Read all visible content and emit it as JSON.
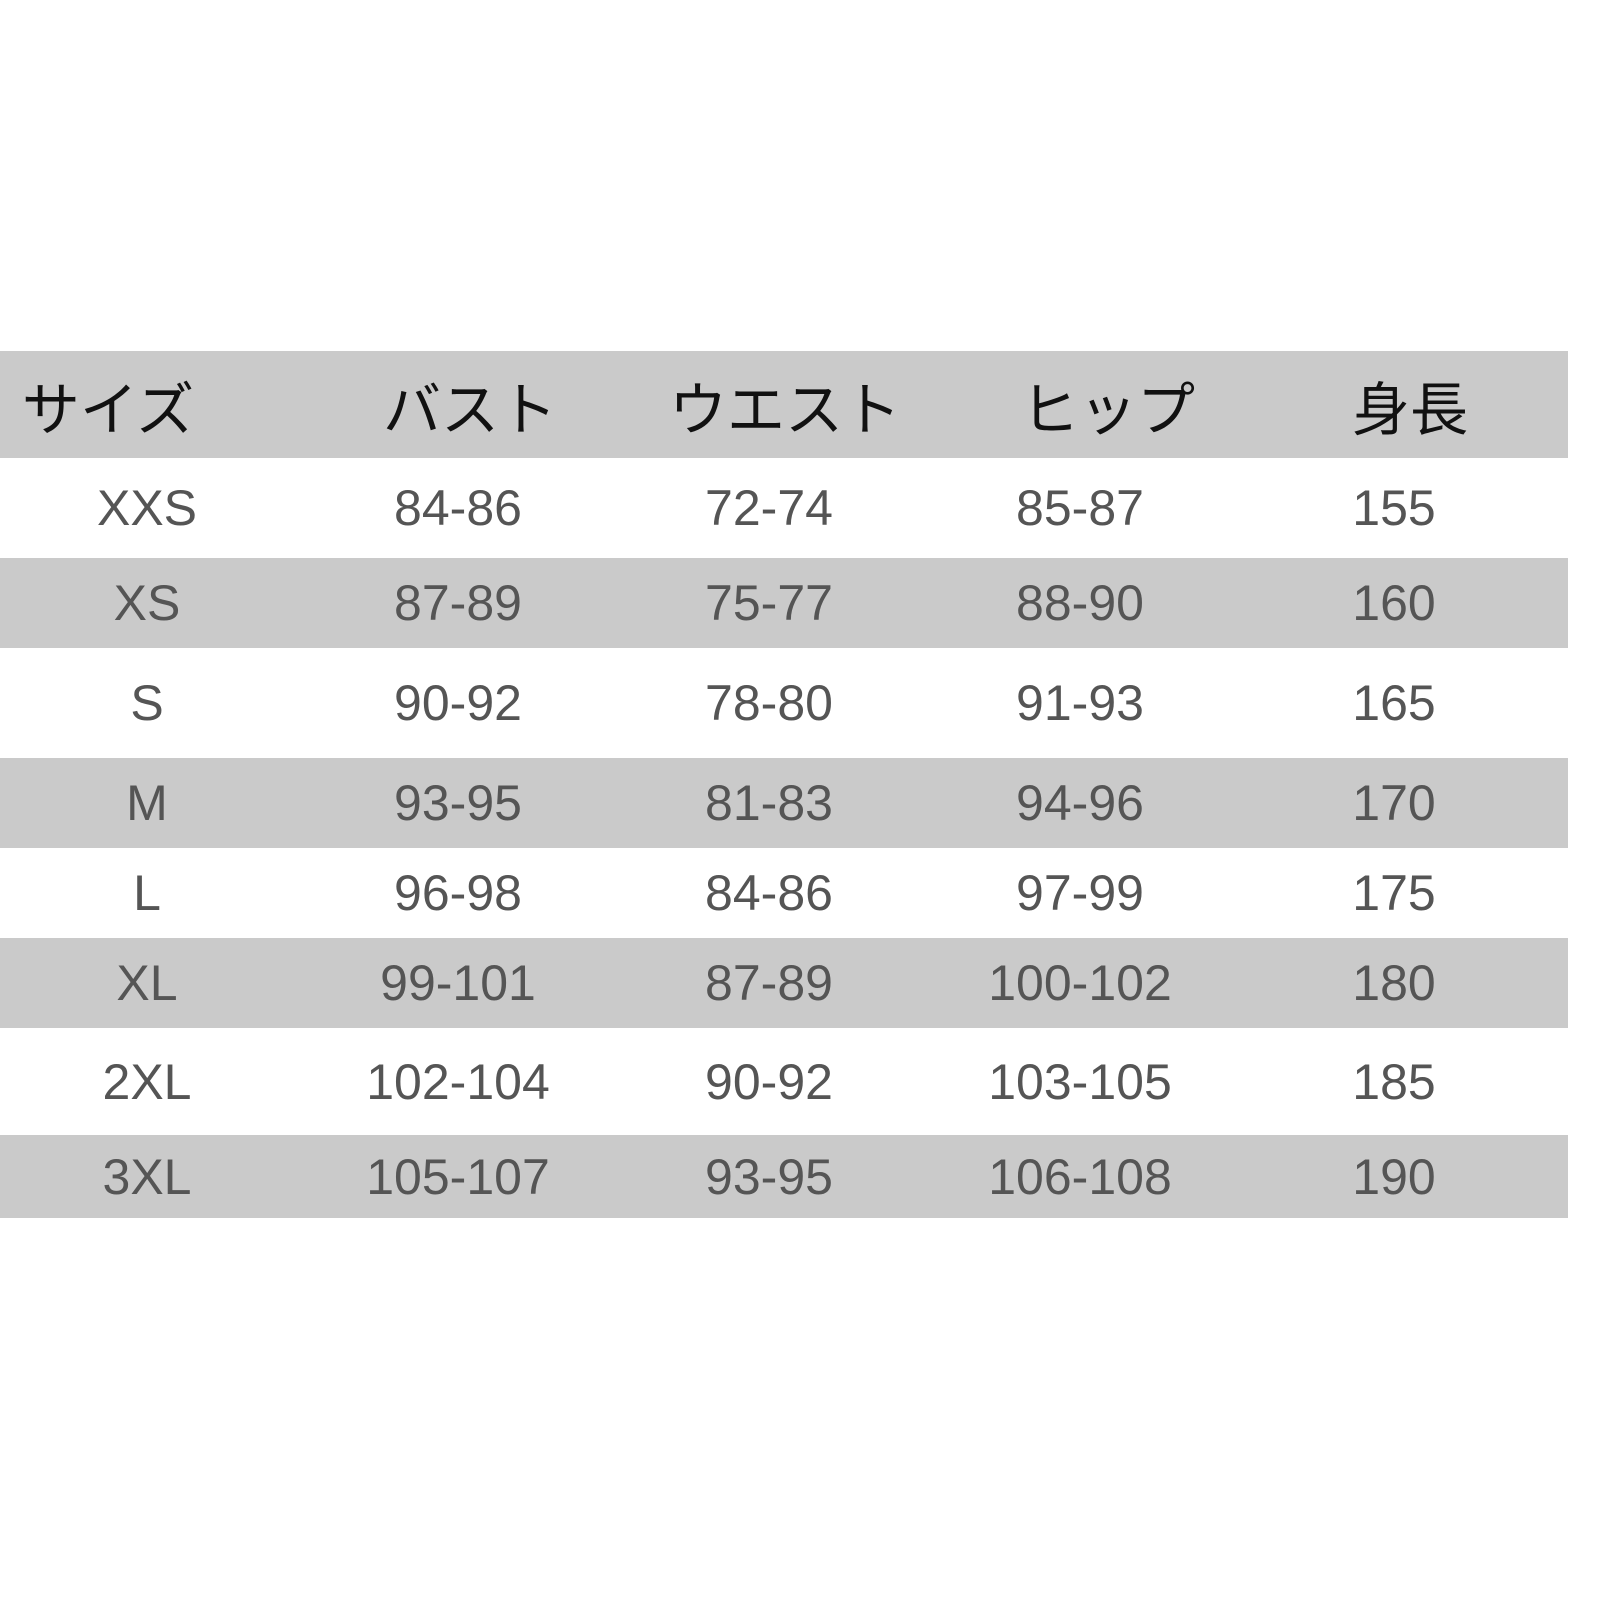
{
  "headers": [
    "サイズ",
    "バスト",
    "ウエスト",
    "ヒップ",
    "身長"
  ],
  "rows": [
    [
      "XXS",
      "84-86",
      "72-74",
      "85-87",
      "155"
    ],
    [
      "XS",
      "87-89",
      "75-77",
      "88-90",
      "160"
    ],
    [
      "S",
      "90-92",
      "78-80",
      "91-93",
      "165"
    ],
    [
      "M",
      "93-95",
      "81-83",
      "94-96",
      "170"
    ],
    [
      "L",
      "96-98",
      "84-86",
      "97-99",
      "175"
    ],
    [
      "XL",
      "99-101",
      "87-89",
      "100-102",
      "180"
    ],
    [
      "2XL",
      "102-104",
      "90-92",
      "103-105",
      "185"
    ],
    [
      "3XL",
      "105-107",
      "93-95",
      "106-108",
      "190"
    ]
  ],
  "colors": {
    "band": "#cacaca",
    "header_text": "#111111",
    "body_text": "#555555"
  }
}
